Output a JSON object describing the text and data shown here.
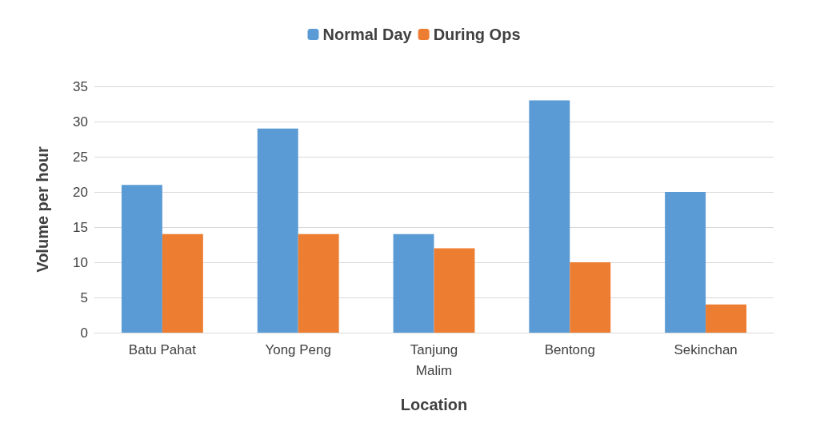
{
  "chart_data": {
    "type": "bar",
    "xlabel": "Location",
    "ylabel": "Volume per hour",
    "categories": [
      "Batu Pahat",
      "Yong Peng",
      "Tanjung\nMalim",
      "Bentong",
      "Sekinchan"
    ],
    "series": [
      {
        "name": "Normal Day",
        "color": "#5b9bd5",
        "values": [
          21,
          29,
          14,
          33,
          20
        ]
      },
      {
        "name": "During Ops",
        "color": "#ed7d31",
        "values": [
          14,
          14,
          12,
          10,
          4
        ]
      }
    ],
    "ylim": [
      0,
      35
    ],
    "yticks": [
      0,
      5,
      10,
      15,
      20,
      25,
      30,
      35
    ],
    "grid": "y",
    "legend": "top"
  }
}
